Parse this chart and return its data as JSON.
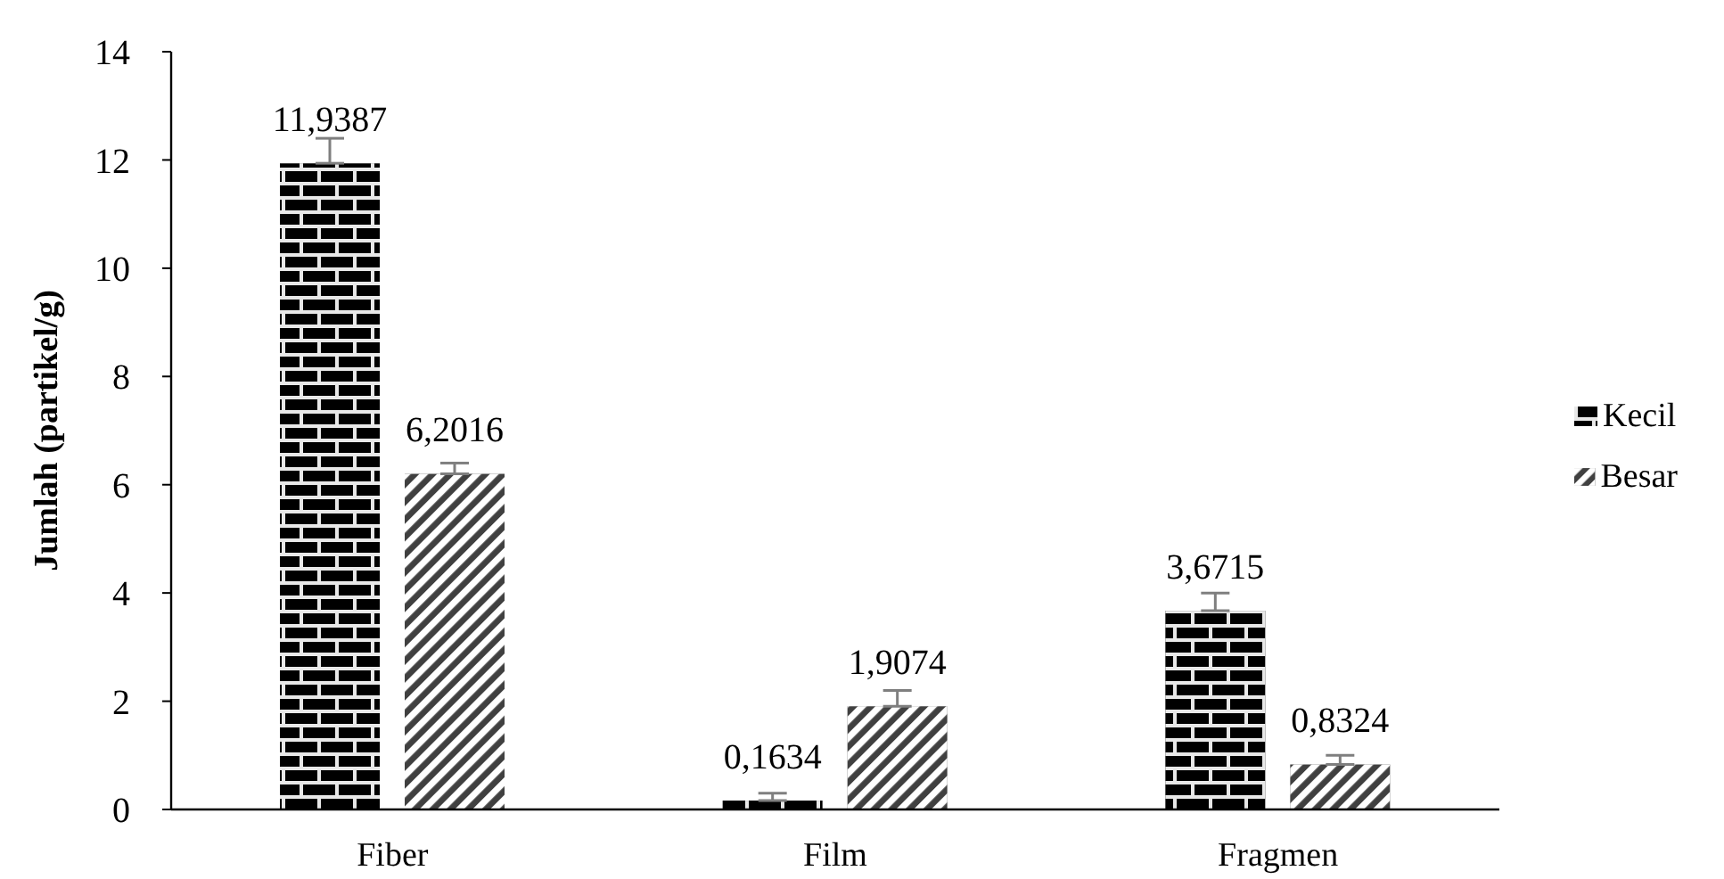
{
  "chart_data": {
    "type": "bar",
    "ylabel": "Jumlah (partikel/g)",
    "categories": [
      "Fiber",
      "Film",
      "Fragmen"
    ],
    "series": [
      {
        "name": "Kecil",
        "color": "#000000",
        "values": [
          11.9387,
          0.1634,
          3.6715
        ],
        "errors": [
          [
            11.9387,
            12.4
          ],
          [
            0.1634,
            0.3
          ],
          [
            3.6715,
            4.0
          ]
        ],
        "value_labels": [
          "11,9387",
          "0,1634",
          "3,6715"
        ]
      },
      {
        "name": "Besar",
        "color": "#404040",
        "values": [
          6.2016,
          1.9074,
          0.8324
        ],
        "errors": [
          [
            6.2016,
            6.4
          ],
          [
            1.9074,
            2.2
          ],
          [
            0.8324,
            1.0
          ]
        ],
        "value_labels": [
          "6,2016",
          "1,9074",
          "0,8324"
        ]
      }
    ],
    "ylim": [
      0,
      14
    ],
    "yticks": [
      0,
      2,
      4,
      6,
      8,
      10,
      12,
      14
    ],
    "legend": "right"
  }
}
